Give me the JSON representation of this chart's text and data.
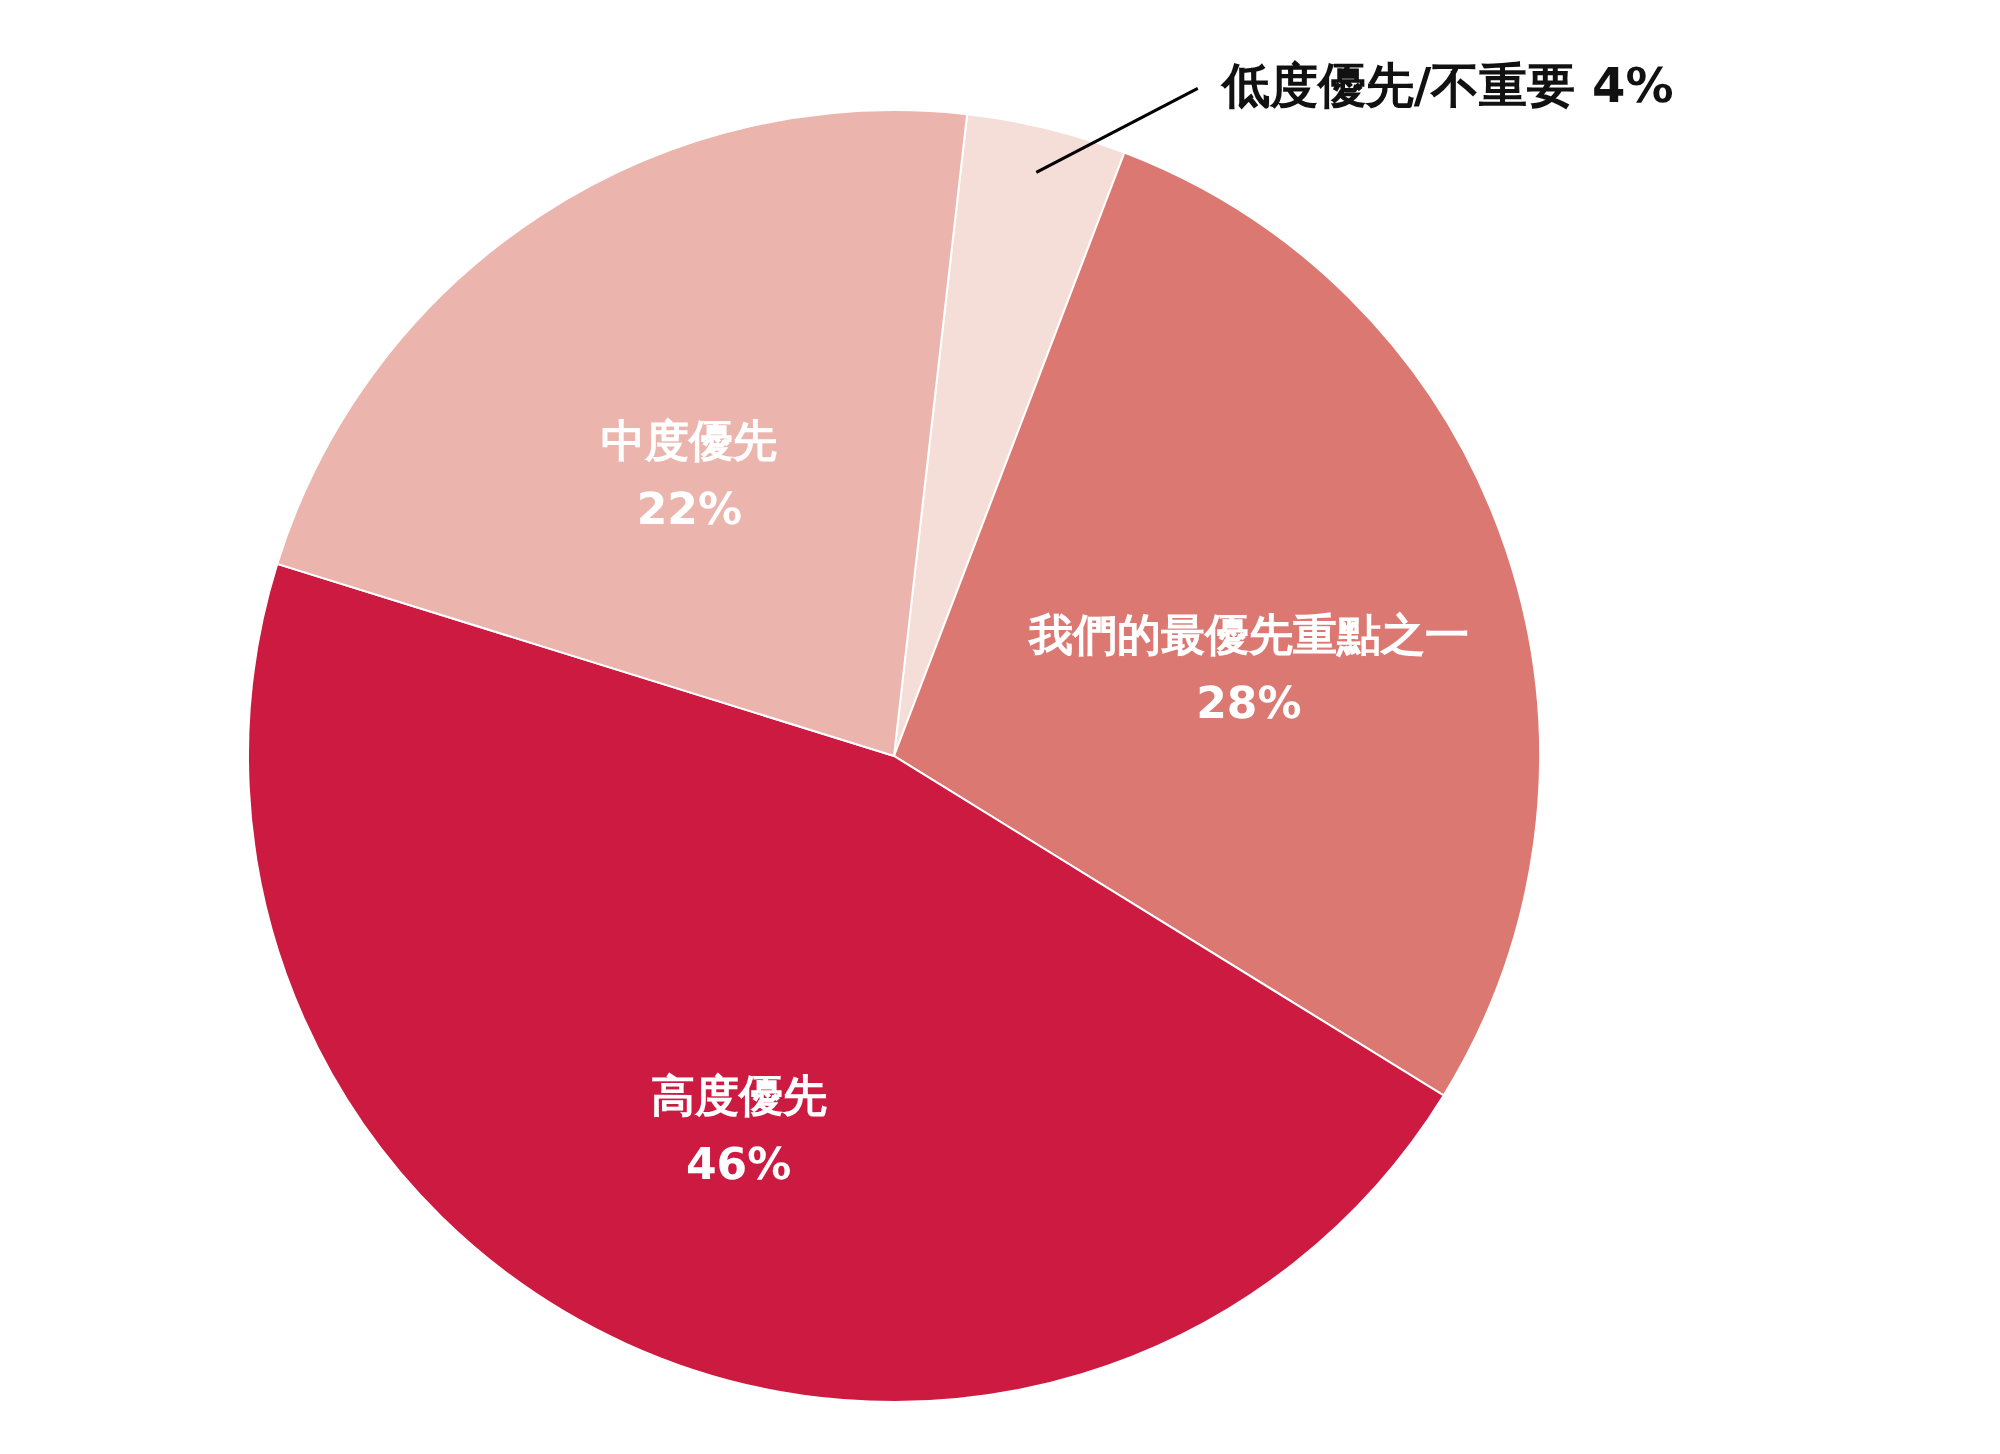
{
  "chart_data": {
    "type": "pie",
    "categories": [
      "低度優先/不重要",
      "我們的最優先重點之一",
      "高度優先",
      "中度優先"
    ],
    "values": [
      4,
      28,
      46,
      22
    ],
    "value_labels": [
      "4%",
      "28%",
      "46%",
      "22%"
    ],
    "colors": [
      "#f5ddd8",
      "#dc7872",
      "#cc1a40",
      "#ebb5ad"
    ]
  }
}
